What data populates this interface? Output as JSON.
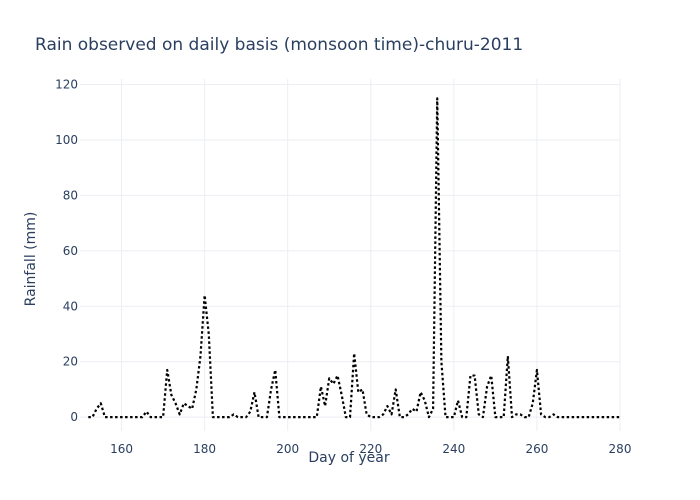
{
  "chart_data": {
    "type": "line",
    "title": "Rain observed on daily basis (monsoon time)-churu-2011",
    "xlabel": "Day of year",
    "ylabel": "Rainfall (mm)",
    "xlim": [
      150,
      280
    ],
    "ylim": [
      -5,
      122
    ],
    "x_ticks": [
      160,
      180,
      200,
      220,
      240,
      260,
      280
    ],
    "y_ticks": [
      0,
      20,
      40,
      60,
      80,
      100,
      120
    ],
    "grid": true,
    "line_style": "dotted",
    "line_color": "#000000",
    "series": [
      {
        "x": [
          152,
          153,
          154,
          155,
          156,
          157,
          158,
          159,
          160,
          161,
          162,
          163,
          164,
          165,
          166,
          167,
          168,
          169,
          170,
          171,
          172,
          173,
          174,
          175,
          176,
          177,
          178,
          179,
          180,
          181,
          182,
          183,
          184,
          185,
          186,
          187,
          188,
          189,
          190,
          191,
          192,
          193,
          194,
          195,
          196,
          197,
          198,
          199,
          200,
          201,
          202,
          203,
          204,
          205,
          206,
          207,
          208,
          209,
          210,
          211,
          212,
          213,
          214,
          215,
          216,
          217,
          218,
          219,
          220,
          221,
          222,
          223,
          224,
          225,
          226,
          227,
          228,
          229,
          230,
          231,
          232,
          233,
          234,
          235,
          236,
          237,
          238,
          239,
          240,
          241,
          242,
          243,
          244,
          245,
          246,
          247,
          248,
          249,
          250,
          251,
          252,
          253,
          254,
          255,
          256,
          257,
          258,
          259,
          260,
          261,
          262,
          263,
          264,
          265,
          266,
          267,
          268,
          269,
          270,
          271,
          272,
          273,
          274,
          275,
          276,
          277,
          278,
          279,
          280
        ],
        "values": [
          0,
          0,
          3,
          5,
          0,
          0,
          0,
          0,
          0,
          0,
          0,
          0,
          0,
          0,
          2,
          0,
          0,
          0,
          0,
          17,
          8,
          5,
          1,
          5,
          4,
          3,
          10,
          22,
          44,
          30,
          0,
          0,
          0,
          0,
          0,
          1,
          0,
          0,
          0,
          2,
          9,
          0,
          0,
          0,
          10,
          17,
          0,
          0,
          0,
          0,
          0,
          0,
          0,
          0,
          0,
          0,
          11,
          4,
          14,
          12,
          15,
          8,
          0,
          0,
          23,
          9,
          10,
          1,
          0,
          0,
          0,
          1,
          4,
          1,
          10,
          0,
          0,
          1,
          3,
          2,
          9,
          6,
          0,
          3,
          115,
          20,
          0,
          0,
          0,
          6,
          0,
          0,
          15,
          15,
          1,
          0,
          11,
          15,
          0,
          0,
          0,
          22,
          0,
          1,
          1,
          0,
          0,
          5,
          17,
          1,
          0,
          0,
          1,
          0,
          0,
          0,
          0,
          0,
          0,
          0,
          0,
          0,
          0,
          0,
          0,
          0,
          0,
          0,
          0
        ]
      }
    ]
  }
}
